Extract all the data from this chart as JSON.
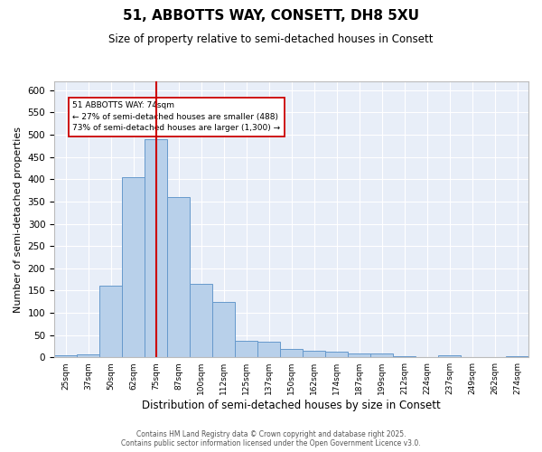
{
  "title1": "51, ABBOTTS WAY, CONSETT, DH8 5XU",
  "title2": "Size of property relative to semi-detached houses in Consett",
  "xlabel": "Distribution of semi-detached houses by size in Consett",
  "ylabel": "Number of semi-detached properties",
  "bar_labels": [
    "25sqm",
    "37sqm",
    "50sqm",
    "62sqm",
    "75sqm",
    "87sqm",
    "100sqm",
    "112sqm",
    "125sqm",
    "137sqm",
    "150sqm",
    "162sqm",
    "174sqm",
    "187sqm",
    "199sqm",
    "212sqm",
    "224sqm",
    "237sqm",
    "249sqm",
    "262sqm",
    "274sqm"
  ],
  "bar_values": [
    5,
    7,
    160,
    405,
    490,
    360,
    165,
    125,
    37,
    35,
    18,
    15,
    13,
    9,
    8,
    3,
    1,
    5,
    1,
    1,
    3
  ],
  "bar_color": "#b8d0ea",
  "bar_edge_color": "#6699cc",
  "bg_color": "#e8eef8",
  "grid_color": "#ffffff",
  "fig_bg_color": "#ffffff",
  "vline_color": "#cc0000",
  "annotation_text": "51 ABBOTTS WAY: 74sqm\n← 27% of semi-detached houses are smaller (488)\n73% of semi-detached houses are larger (1,300) →",
  "annotation_box_color": "#ffffff",
  "annotation_box_edge": "#cc0000",
  "ylim": [
    0,
    620
  ],
  "yticks": [
    0,
    50,
    100,
    150,
    200,
    250,
    300,
    350,
    400,
    450,
    500,
    550,
    600
  ],
  "footer_line1": "Contains HM Land Registry data © Crown copyright and database right 2025.",
  "footer_line2": "Contains public sector information licensed under the Open Government Licence v3.0."
}
